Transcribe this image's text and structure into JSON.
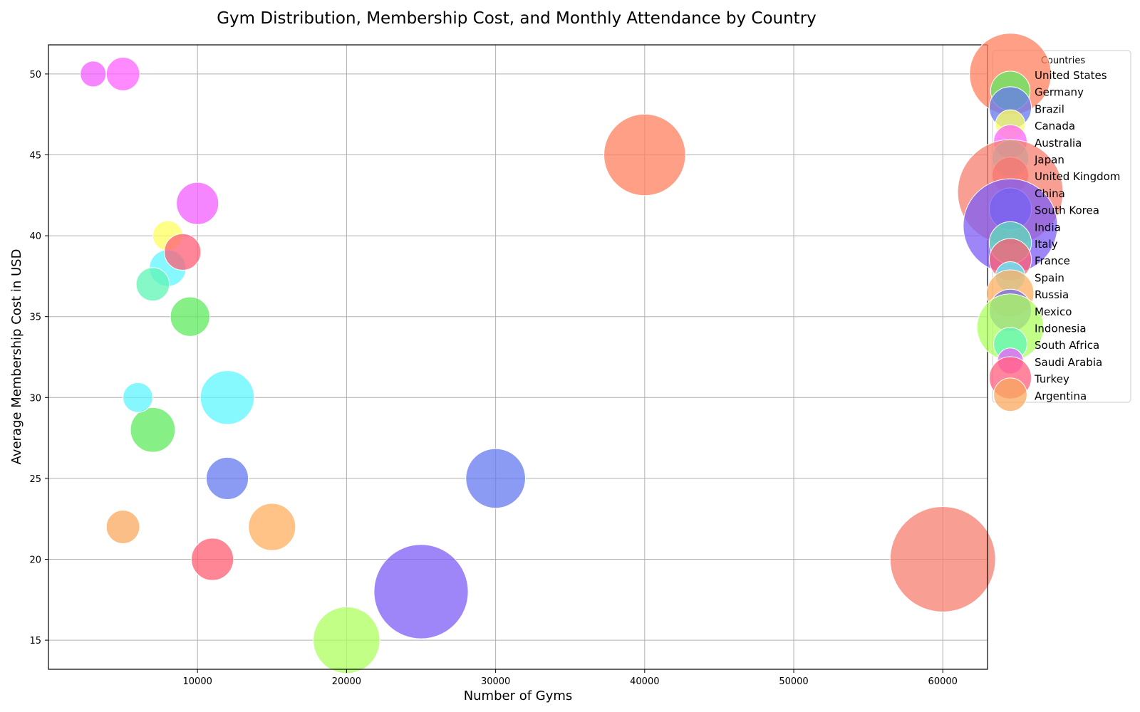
{
  "chart_data": {
    "type": "scatter",
    "title": "Gym Distribution, Membership Cost, and Monthly Attendance by Country",
    "xlabel": "Number of Gyms",
    "ylabel": "Average Membership Cost in USD",
    "xlim": [
      0,
      63000
    ],
    "ylim": [
      13.2,
      51.8
    ],
    "xticks": [
      10000,
      20000,
      30000,
      40000,
      50000,
      60000
    ],
    "yticks": [
      15,
      20,
      25,
      30,
      35,
      40,
      45,
      50
    ],
    "grid": true,
    "legend": {
      "title": "Countries",
      "placement": "right, outside plot area"
    },
    "size_encoding": "Monthly Attendance (relative)",
    "series": [
      {
        "name": "United States",
        "color": "#FF7F5E",
        "points": [
          {
            "x": 40000,
            "y": 45,
            "size": 30
          }
        ]
      },
      {
        "name": "Germany",
        "color": "#5EEB5E",
        "points": [
          {
            "x": 9500,
            "y": 35,
            "size": 7
          },
          {
            "x": 7000,
            "y": 28,
            "size": 9
          }
        ]
      },
      {
        "name": "Brazil",
        "color": "#6479F0",
        "points": [
          {
            "x": 12000,
            "y": 25,
            "size": 8
          },
          {
            "x": 30000,
            "y": 25,
            "size": 16
          }
        ]
      },
      {
        "name": "Canada",
        "color": "#FFFF60",
        "points": [
          {
            "x": 8000,
            "y": 40,
            "size": 4
          }
        ]
      },
      {
        "name": "Australia",
        "color": "#FF63FF",
        "points": [
          {
            "x": 5000,
            "y": 50,
            "size": 5
          }
        ]
      },
      {
        "name": "Japan",
        "color": "#5EF5FF",
        "points": [
          {
            "x": 8000,
            "y": 38,
            "size": 6
          },
          {
            "x": 12000,
            "y": 30,
            "size": 13
          }
        ]
      },
      {
        "name": "United Kingdom",
        "color": "#FF5E76",
        "points": [
          {
            "x": 9000,
            "y": 39,
            "size": 6
          }
        ]
      },
      {
        "name": "China",
        "color": "#F67E6F",
        "points": [
          {
            "x": 60000,
            "y": 20,
            "size": 50
          }
        ]
      },
      {
        "name": "South Korea",
        "color": "#5E6EEA",
        "points": []
      },
      {
        "name": "India",
        "color": "#7E5EF6",
        "points": [
          {
            "x": 25000,
            "y": 18,
            "size": 40
          }
        ]
      },
      {
        "name": "Italy",
        "color": "#5EE0B8",
        "points": []
      },
      {
        "name": "France",
        "color": "#FF5E72",
        "points": [
          {
            "x": 11000,
            "y": 20,
            "size": 8
          }
        ]
      },
      {
        "name": "Spain",
        "color": "#5EF3FF",
        "points": [
          {
            "x": 6000,
            "y": 30,
            "size": 4
          }
        ]
      },
      {
        "name": "Russia",
        "color": "#FFAF60",
        "points": [
          {
            "x": 15000,
            "y": 22,
            "size": 10
          }
        ]
      },
      {
        "name": "Mexico",
        "color": "#6C6CE6",
        "points": []
      },
      {
        "name": "Indonesia",
        "color": "#AEFF5E",
        "points": [
          {
            "x": 20000,
            "y": 15,
            "size": 20
          }
        ]
      },
      {
        "name": "South Africa",
        "color": "#5EF5B6",
        "points": [
          {
            "x": 7000,
            "y": 37,
            "size": 5
          }
        ]
      },
      {
        "name": "Saudi Arabia",
        "color": "#F25EFF",
        "points": [
          {
            "x": 3000,
            "y": 50,
            "size": 3
          },
          {
            "x": 10000,
            "y": 42,
            "size": 8
          }
        ]
      },
      {
        "name": "Turkey",
        "color": "#FF5E7C",
        "points": []
      },
      {
        "name": "Argentina",
        "color": "#F8A85E",
        "points": [
          {
            "x": 5000,
            "y": 22,
            "size": 5
          }
        ]
      }
    ],
    "legend_marker_sizes": [
      30,
      7,
      8,
      4,
      5,
      6,
      6,
      50,
      8,
      40,
      8,
      8,
      4,
      10,
      8,
      20,
      5,
      3,
      8,
      5
    ]
  }
}
